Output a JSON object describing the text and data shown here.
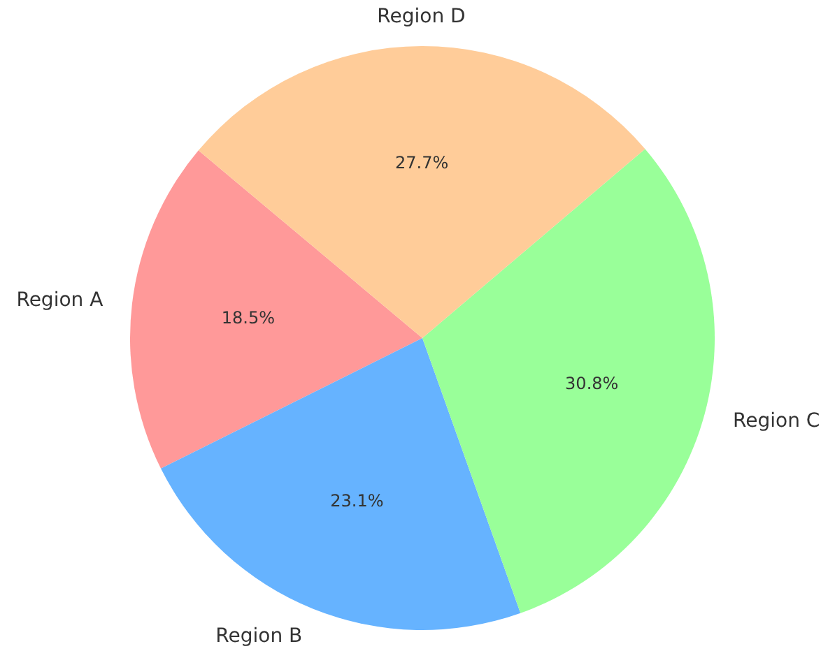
{
  "chart_data": {
    "type": "pie",
    "categories": [
      "Region A",
      "Region B",
      "Region C",
      "Region D"
    ],
    "values": [
      18.5,
      23.1,
      30.8,
      27.7
    ],
    "value_labels": [
      "18.5%",
      "23.1%",
      "30.8%",
      "27.7%"
    ],
    "colors": [
      "#ff9999",
      "#66b3ff",
      "#99ff99",
      "#ffcc99"
    ],
    "legend": false
  }
}
